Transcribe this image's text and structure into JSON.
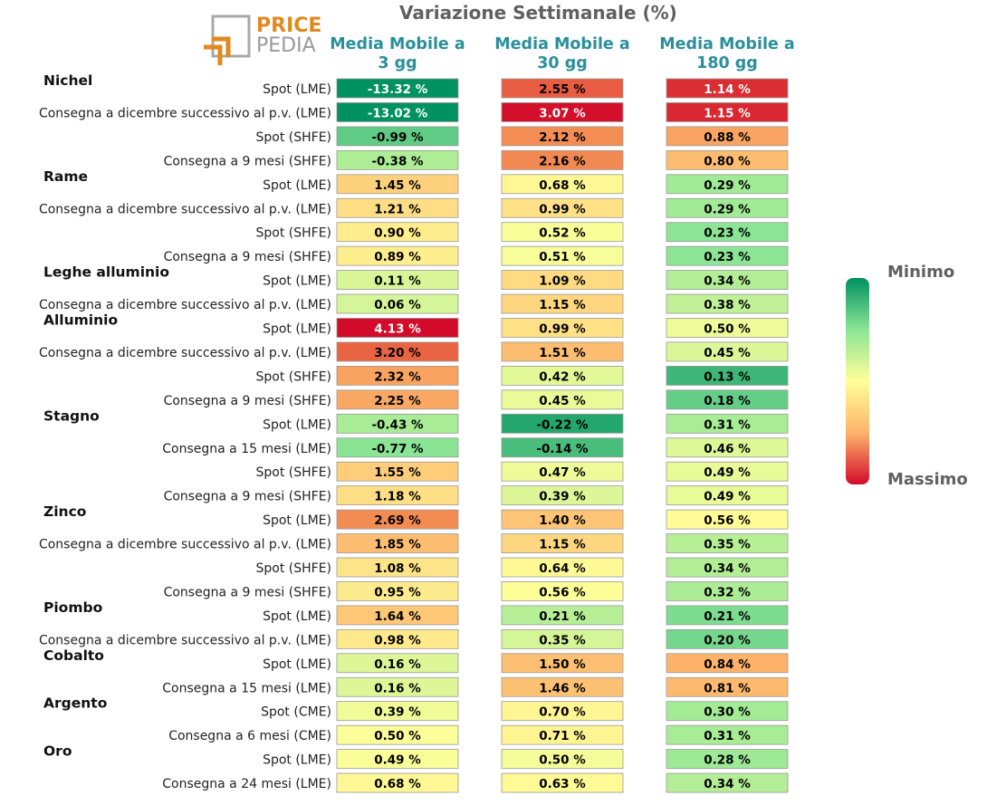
{
  "title": "Variazione Settimanale (%)",
  "logo": {
    "line1": "PRICE",
    "line2": "PEDIA"
  },
  "legend": {
    "min_label": "Minimo",
    "max_label": "Massimo",
    "colors": [
      "#009161",
      "#8be595",
      "#ffff99",
      "#fdb36a",
      "#d20b2b"
    ]
  },
  "chart_data": {
    "type": "heatmap",
    "title": "Variazione Settimanale (%)",
    "columns": [
      {
        "line1": "Media Mobile a",
        "line2": "3 gg"
      },
      {
        "line1": "Media Mobile a",
        "line2": "30 gg"
      },
      {
        "line1": "Media Mobile a",
        "line2": "180 gg"
      }
    ],
    "unit": "%",
    "groups": [
      {
        "name": "Nichel",
        "rows": [
          {
            "label": "Spot (LME)",
            "values": [
              -13.32,
              2.55,
              1.14
            ]
          },
          {
            "label": "Consegna a dicembre successivo al p.v. (LME)",
            "values": [
              -13.02,
              3.07,
              1.15
            ]
          },
          {
            "label": "Spot (SHFE)",
            "values": [
              -0.99,
              2.12,
              0.88
            ]
          },
          {
            "label": "Consegna a 9 mesi (SHFE)",
            "values": [
              -0.38,
              2.16,
              0.8
            ]
          }
        ]
      },
      {
        "name": "Rame",
        "rows": [
          {
            "label": "Spot (LME)",
            "values": [
              1.45,
              0.68,
              0.29
            ]
          },
          {
            "label": "Consegna a dicembre successivo al p.v. (LME)",
            "values": [
              1.21,
              0.99,
              0.29
            ]
          },
          {
            "label": "Spot (SHFE)",
            "values": [
              0.9,
              0.52,
              0.23
            ]
          },
          {
            "label": "Consegna a 9 mesi (SHFE)",
            "values": [
              0.89,
              0.51,
              0.23
            ]
          }
        ]
      },
      {
        "name": "Leghe alluminio",
        "rows": [
          {
            "label": "Spot (LME)",
            "values": [
              0.11,
              1.09,
              0.34
            ]
          },
          {
            "label": "Consegna a dicembre successivo al p.v. (LME)",
            "values": [
              0.06,
              1.15,
              0.38
            ]
          }
        ]
      },
      {
        "name": "Alluminio",
        "rows": [
          {
            "label": "Spot (LME)",
            "values": [
              4.13,
              0.99,
              0.5
            ]
          },
          {
            "label": "Consegna a dicembre successivo al p.v. (LME)",
            "values": [
              3.2,
              1.51,
              0.45
            ]
          },
          {
            "label": "Spot (SHFE)",
            "values": [
              2.32,
              0.42,
              0.13
            ]
          },
          {
            "label": "Consegna a 9 mesi (SHFE)",
            "values": [
              2.25,
              0.45,
              0.18
            ]
          }
        ]
      },
      {
        "name": "Stagno",
        "rows": [
          {
            "label": "Spot (LME)",
            "values": [
              -0.43,
              -0.22,
              0.31
            ]
          },
          {
            "label": "Consegna a 15 mesi (LME)",
            "values": [
              -0.77,
              -0.14,
              0.46
            ]
          },
          {
            "label": "Spot (SHFE)",
            "values": [
              1.55,
              0.47,
              0.49
            ]
          },
          {
            "label": "Consegna a 9 mesi (SHFE)",
            "values": [
              1.18,
              0.39,
              0.49
            ]
          }
        ]
      },
      {
        "name": "Zinco",
        "rows": [
          {
            "label": "Spot (LME)",
            "values": [
              2.69,
              1.4,
              0.56
            ]
          },
          {
            "label": "Consegna a dicembre successivo al p.v. (LME)",
            "values": [
              1.85,
              1.15,
              0.35
            ]
          },
          {
            "label": "Spot (SHFE)",
            "values": [
              1.08,
              0.64,
              0.34
            ]
          },
          {
            "label": "Consegna a 9 mesi (SHFE)",
            "values": [
              0.95,
              0.56,
              0.32
            ]
          }
        ]
      },
      {
        "name": "Piombo",
        "rows": [
          {
            "label": "Spot (LME)",
            "values": [
              1.64,
              0.21,
              0.21
            ]
          },
          {
            "label": "Consegna a dicembre successivo al p.v. (LME)",
            "values": [
              0.98,
              0.35,
              0.2
            ]
          }
        ]
      },
      {
        "name": "Cobalto",
        "rows": [
          {
            "label": "Spot (LME)",
            "values": [
              0.16,
              1.5,
              0.84
            ]
          },
          {
            "label": "Consegna a 15 mesi (LME)",
            "values": [
              0.16,
              1.46,
              0.81
            ]
          }
        ]
      },
      {
        "name": "Argento",
        "rows": [
          {
            "label": "Spot (CME)",
            "values": [
              0.39,
              0.7,
              0.3
            ]
          },
          {
            "label": "Consegna a 6 mesi (CME)",
            "values": [
              0.5,
              0.71,
              0.31
            ]
          }
        ]
      },
      {
        "name": "Oro",
        "rows": [
          {
            "label": "Spot (LME)",
            "values": [
              0.49,
              0.5,
              0.28
            ]
          },
          {
            "label": "Consegna a 24 mesi (LME)",
            "values": [
              0.68,
              0.63,
              0.34
            ]
          }
        ]
      }
    ]
  }
}
